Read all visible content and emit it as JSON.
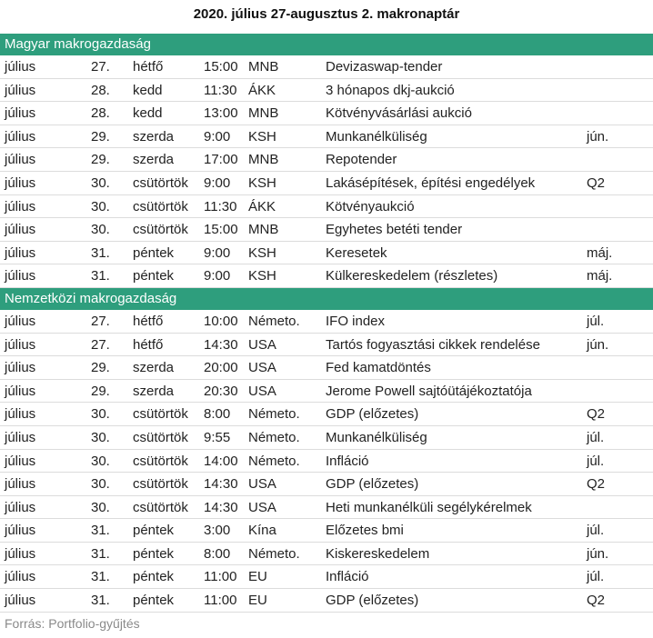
{
  "title": "2020. július 27-augusztus 2. makronaptár",
  "sections": [
    {
      "name": "Magyar makrogazdaság",
      "rows": [
        {
          "month": "július",
          "day": "27.",
          "weekday": "hétfő",
          "time": "15:00",
          "source": "MNB",
          "event": "Devizaswap-tender",
          "period": ""
        },
        {
          "month": "július",
          "day": "28.",
          "weekday": "kedd",
          "time": "11:30",
          "source": "ÁKK",
          "event": "3 hónapos dkj-aukció",
          "period": ""
        },
        {
          "month": "július",
          "day": "28.",
          "weekday": "kedd",
          "time": "13:00",
          "source": "MNB",
          "event": "Kötvényvásárlási aukció",
          "period": ""
        },
        {
          "month": "július",
          "day": "29.",
          "weekday": "szerda",
          "time": "9:00",
          "source": "KSH",
          "event": "Munkanélküliség",
          "period": "jún."
        },
        {
          "month": "július",
          "day": "29.",
          "weekday": "szerda",
          "time": "17:00",
          "source": "MNB",
          "event": "Repotender",
          "period": ""
        },
        {
          "month": "július",
          "day": "30.",
          "weekday": "csütörtök",
          "time": "9:00",
          "source": "KSH",
          "event": "Lakásépítések, építési engedélyek",
          "period": "Q2"
        },
        {
          "month": "július",
          "day": "30.",
          "weekday": "csütörtök",
          "time": "11:30",
          "source": "ÁKK",
          "event": "Kötvényaukció",
          "period": ""
        },
        {
          "month": "július",
          "day": "30.",
          "weekday": "csütörtök",
          "time": "15:00",
          "source": "MNB",
          "event": "Egyhetes betéti tender",
          "period": ""
        },
        {
          "month": "július",
          "day": "31.",
          "weekday": "péntek",
          "time": "9:00",
          "source": "KSH",
          "event": "Keresetek",
          "period": "máj."
        },
        {
          "month": "július",
          "day": "31.",
          "weekday": "péntek",
          "time": "9:00",
          "source": "KSH",
          "event": "Külkereskedelem (részletes)",
          "period": "máj."
        }
      ]
    },
    {
      "name": "Nemzetközi makrogazdaság",
      "rows": [
        {
          "month": "július",
          "day": "27.",
          "weekday": "hétfő",
          "time": "10:00",
          "source": "Németo.",
          "event": "IFO index",
          "period": "júl."
        },
        {
          "month": "július",
          "day": "27.",
          "weekday": "hétfő",
          "time": "14:30",
          "source": "USA",
          "event": "Tartós fogyasztási cikkek rendelése",
          "period": "jún."
        },
        {
          "month": "július",
          "day": "29.",
          "weekday": "szerda",
          "time": "20:00",
          "source": "USA",
          "event": "Fed kamatdöntés",
          "period": ""
        },
        {
          "month": "július",
          "day": "29.",
          "weekday": "szerda",
          "time": "20:30",
          "source": "USA",
          "event": "Jerome Powell sajtóütájékoztatója",
          "period": ""
        },
        {
          "month": "július",
          "day": "30.",
          "weekday": "csütörtök",
          "time": "8:00",
          "source": "Németo.",
          "event": "GDP (előzetes)",
          "period": "Q2"
        },
        {
          "month": "július",
          "day": "30.",
          "weekday": "csütörtök",
          "time": "9:55",
          "source": "Németo.",
          "event": "Munkanélküliség",
          "period": "júl."
        },
        {
          "month": "július",
          "day": "30.",
          "weekday": "csütörtök",
          "time": "14:00",
          "source": "Németo.",
          "event": "Infláció",
          "period": "júl."
        },
        {
          "month": "július",
          "day": "30.",
          "weekday": "csütörtök",
          "time": "14:30",
          "source": "USA",
          "event": "GDP (előzetes)",
          "period": "Q2"
        },
        {
          "month": "július",
          "day": "30.",
          "weekday": "csütörtök",
          "time": "14:30",
          "source": "USA",
          "event": "Heti munkanélküli segélykérelmek",
          "period": ""
        },
        {
          "month": "július",
          "day": "31.",
          "weekday": "péntek",
          "time": "3:00",
          "source": "Kína",
          "event": "Előzetes bmi",
          "period": "júl."
        },
        {
          "month": "július",
          "day": "31.",
          "weekday": "péntek",
          "time": "8:00",
          "source": "Németo.",
          "event": "Kiskereskedelem",
          "period": "jún."
        },
        {
          "month": "július",
          "day": "31.",
          "weekday": "péntek",
          "time": "11:00",
          "source": "EU",
          "event": "Infláció",
          "period": "júl."
        },
        {
          "month": "július",
          "day": "31.",
          "weekday": "péntek",
          "time": "11:00",
          "source": "EU",
          "event": "GDP (előzetes)",
          "period": "Q2"
        }
      ]
    }
  ],
  "footer": "Forrás: Portfolio-gyűjtés",
  "colors": {
    "section_header": "#2e9e7d",
    "row_divider": "#dcdcdc",
    "footer_text": "#8a8a8a"
  }
}
